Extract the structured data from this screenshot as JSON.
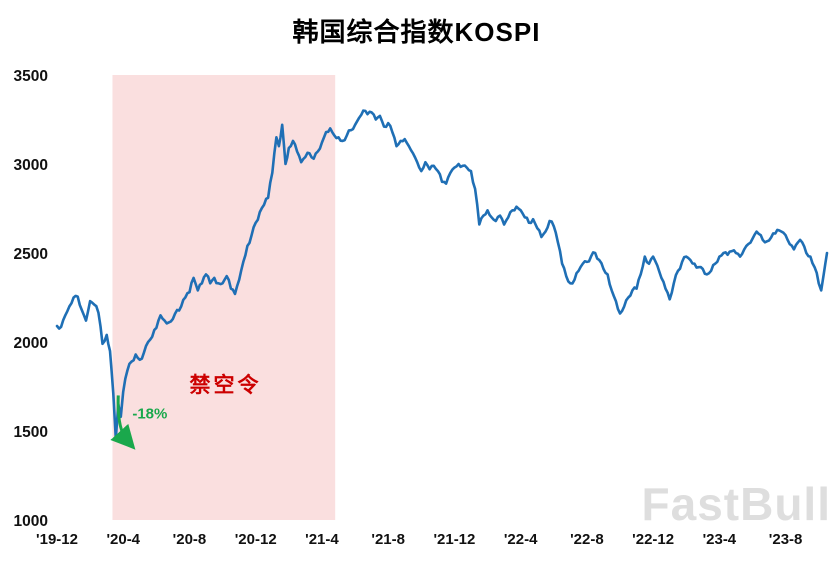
{
  "title": "韩国综合指数KOSPI",
  "watermark": "FastBull",
  "chart_data": {
    "type": "line",
    "title": "韩国综合指数KOSPI",
    "xlabel": "",
    "ylabel": "",
    "x_unit": "months since 2019-12 (0 = '19-12)",
    "xlim": [
      0,
      46.5
    ],
    "ylim": [
      1000,
      3500
    ],
    "grid": false,
    "yticks": [
      1000,
      1500,
      2000,
      2500,
      3000,
      3500
    ],
    "xticks": [
      {
        "m": 0,
        "label": "'19-12"
      },
      {
        "m": 4,
        "label": "'20-4"
      },
      {
        "m": 8,
        "label": "'20-8"
      },
      {
        "m": 12,
        "label": "'20-12"
      },
      {
        "m": 16,
        "label": "'21-4"
      },
      {
        "m": 20,
        "label": "'21-8"
      },
      {
        "m": 24,
        "label": "'21-12"
      },
      {
        "m": 28,
        "label": "'22-4"
      },
      {
        "m": 32,
        "label": "'22-8"
      },
      {
        "m": 36,
        "label": "'22-12"
      },
      {
        "m": 40,
        "label": "'23-4"
      },
      {
        "m": 44,
        "label": "'23-8"
      }
    ],
    "series": [
      {
        "name": "KOSPI",
        "color": "#1f6fb5",
        "points": [
          [
            0,
            2090
          ],
          [
            0.25,
            2085
          ],
          [
            0.5,
            2150
          ],
          [
            0.75,
            2200
          ],
          [
            1,
            2250
          ],
          [
            1.25,
            2255
          ],
          [
            1.5,
            2180
          ],
          [
            1.75,
            2120
          ],
          [
            2,
            2230
          ],
          [
            2.25,
            2210
          ],
          [
            2.5,
            2165
          ],
          [
            2.75,
            1990
          ],
          [
            3,
            2040
          ],
          [
            3.2,
            1950
          ],
          [
            3.4,
            1710
          ],
          [
            3.55,
            1457
          ],
          [
            3.7,
            1650
          ],
          [
            3.85,
            1580
          ],
          [
            4,
            1720
          ],
          [
            4.25,
            1840
          ],
          [
            4.5,
            1890
          ],
          [
            4.75,
            1930
          ],
          [
            5,
            1900
          ],
          [
            5.25,
            1940
          ],
          [
            5.5,
            2000
          ],
          [
            5.75,
            2030
          ],
          [
            6,
            2080
          ],
          [
            6.25,
            2150
          ],
          [
            6.5,
            2120
          ],
          [
            6.75,
            2110
          ],
          [
            7,
            2130
          ],
          [
            7.25,
            2180
          ],
          [
            7.5,
            2200
          ],
          [
            7.75,
            2250
          ],
          [
            8,
            2280
          ],
          [
            8.25,
            2360
          ],
          [
            8.5,
            2290
          ],
          [
            8.75,
            2330
          ],
          [
            9,
            2380
          ],
          [
            9.25,
            2330
          ],
          [
            9.5,
            2360
          ],
          [
            9.75,
            2330
          ],
          [
            10,
            2330
          ],
          [
            10.25,
            2370
          ],
          [
            10.5,
            2300
          ],
          [
            10.75,
            2270
          ],
          [
            11,
            2350
          ],
          [
            11.25,
            2450
          ],
          [
            11.5,
            2540
          ],
          [
            11.75,
            2600
          ],
          [
            12,
            2670
          ],
          [
            12.25,
            2730
          ],
          [
            12.5,
            2770
          ],
          [
            12.75,
            2810
          ],
          [
            13,
            2950
          ],
          [
            13.25,
            3150
          ],
          [
            13.4,
            3100
          ],
          [
            13.6,
            3220
          ],
          [
            13.8,
            3000
          ],
          [
            14,
            3090
          ],
          [
            14.25,
            3130
          ],
          [
            14.5,
            3070
          ],
          [
            14.75,
            3010
          ],
          [
            15,
            3040
          ],
          [
            15.25,
            3060
          ],
          [
            15.5,
            3030
          ],
          [
            15.75,
            3070
          ],
          [
            16,
            3120
          ],
          [
            16.25,
            3180
          ],
          [
            16.5,
            3200
          ],
          [
            16.75,
            3160
          ],
          [
            17,
            3150
          ],
          [
            17.25,
            3130
          ],
          [
            17.5,
            3160
          ],
          [
            17.75,
            3190
          ],
          [
            18,
            3220
          ],
          [
            18.25,
            3260
          ],
          [
            18.5,
            3300
          ],
          [
            18.75,
            3280
          ],
          [
            19,
            3290
          ],
          [
            19.25,
            3250
          ],
          [
            19.5,
            3270
          ],
          [
            19.75,
            3210
          ],
          [
            20,
            3230
          ],
          [
            20.25,
            3180
          ],
          [
            20.5,
            3100
          ],
          [
            20.75,
            3130
          ],
          [
            21,
            3140
          ],
          [
            21.25,
            3100
          ],
          [
            21.5,
            3060
          ],
          [
            21.75,
            3010
          ],
          [
            22,
            2960
          ],
          [
            22.25,
            3010
          ],
          [
            22.5,
            2970
          ],
          [
            22.75,
            2990
          ],
          [
            23,
            2960
          ],
          [
            23.25,
            2900
          ],
          [
            23.5,
            2890
          ],
          [
            23.75,
            2950
          ],
          [
            24,
            2980
          ],
          [
            24.25,
            3000
          ],
          [
            24.5,
            2990
          ],
          [
            24.75,
            2980
          ],
          [
            25,
            2960
          ],
          [
            25.25,
            2860
          ],
          [
            25.5,
            2660
          ],
          [
            25.75,
            2710
          ],
          [
            26,
            2740
          ],
          [
            26.25,
            2700
          ],
          [
            26.5,
            2680
          ],
          [
            26.75,
            2710
          ],
          [
            27,
            2660
          ],
          [
            27.25,
            2700
          ],
          [
            27.5,
            2740
          ],
          [
            27.75,
            2760
          ],
          [
            28,
            2740
          ],
          [
            28.25,
            2700
          ],
          [
            28.5,
            2670
          ],
          [
            28.75,
            2690
          ],
          [
            29,
            2640
          ],
          [
            29.25,
            2590
          ],
          [
            29.5,
            2620
          ],
          [
            29.75,
            2680
          ],
          [
            30,
            2650
          ],
          [
            30.25,
            2560
          ],
          [
            30.5,
            2440
          ],
          [
            30.75,
            2370
          ],
          [
            31,
            2330
          ],
          [
            31.25,
            2350
          ],
          [
            31.5,
            2400
          ],
          [
            31.75,
            2440
          ],
          [
            32,
            2450
          ],
          [
            32.25,
            2480
          ],
          [
            32.5,
            2500
          ],
          [
            32.75,
            2460
          ],
          [
            33,
            2410
          ],
          [
            33.25,
            2380
          ],
          [
            33.5,
            2290
          ],
          [
            33.75,
            2230
          ],
          [
            34,
            2160
          ],
          [
            34.25,
            2200
          ],
          [
            34.5,
            2250
          ],
          [
            34.75,
            2290
          ],
          [
            35,
            2300
          ],
          [
            35.25,
            2380
          ],
          [
            35.5,
            2480
          ],
          [
            35.75,
            2440
          ],
          [
            36,
            2480
          ],
          [
            36.25,
            2430
          ],
          [
            36.5,
            2360
          ],
          [
            36.75,
            2300
          ],
          [
            37,
            2240
          ],
          [
            37.25,
            2330
          ],
          [
            37.5,
            2400
          ],
          [
            37.75,
            2450
          ],
          [
            38,
            2480
          ],
          [
            38.25,
            2460
          ],
          [
            38.5,
            2440
          ],
          [
            38.75,
            2420
          ],
          [
            39,
            2410
          ],
          [
            39.25,
            2380
          ],
          [
            39.5,
            2400
          ],
          [
            39.75,
            2440
          ],
          [
            40,
            2480
          ],
          [
            40.25,
            2500
          ],
          [
            40.5,
            2490
          ],
          [
            40.75,
            2510
          ],
          [
            41,
            2500
          ],
          [
            41.25,
            2480
          ],
          [
            41.5,
            2520
          ],
          [
            41.75,
            2550
          ],
          [
            42,
            2580
          ],
          [
            42.25,
            2620
          ],
          [
            42.5,
            2600
          ],
          [
            42.75,
            2560
          ],
          [
            43,
            2570
          ],
          [
            43.25,
            2610
          ],
          [
            43.5,
            2630
          ],
          [
            43.75,
            2620
          ],
          [
            44,
            2600
          ],
          [
            44.25,
            2550
          ],
          [
            44.5,
            2520
          ],
          [
            44.75,
            2560
          ],
          [
            45,
            2560
          ],
          [
            45.25,
            2500
          ],
          [
            45.5,
            2480
          ],
          [
            45.75,
            2420
          ],
          [
            46,
            2330
          ],
          [
            46.15,
            2290
          ],
          [
            46.3,
            2380
          ],
          [
            46.5,
            2500
          ]
        ]
      }
    ],
    "annotations": {
      "shaded_region": {
        "x_start": 3.35,
        "x_end": 16.8,
        "fill": "#fadfdf",
        "label": "禁空令",
        "label_color": "#cc0000",
        "label_pos": [
          8.0,
          1720
        ]
      },
      "drop_arrow": {
        "from": [
          3.7,
          1700
        ],
        "ctrl": [
          3.62,
          1510
        ],
        "to": [
          4.25,
          1445
        ],
        "color": "#1aa84c",
        "label": "-18%",
        "label_color": "#1aa84c",
        "label_pos": [
          4.55,
          1570
        ]
      }
    }
  }
}
